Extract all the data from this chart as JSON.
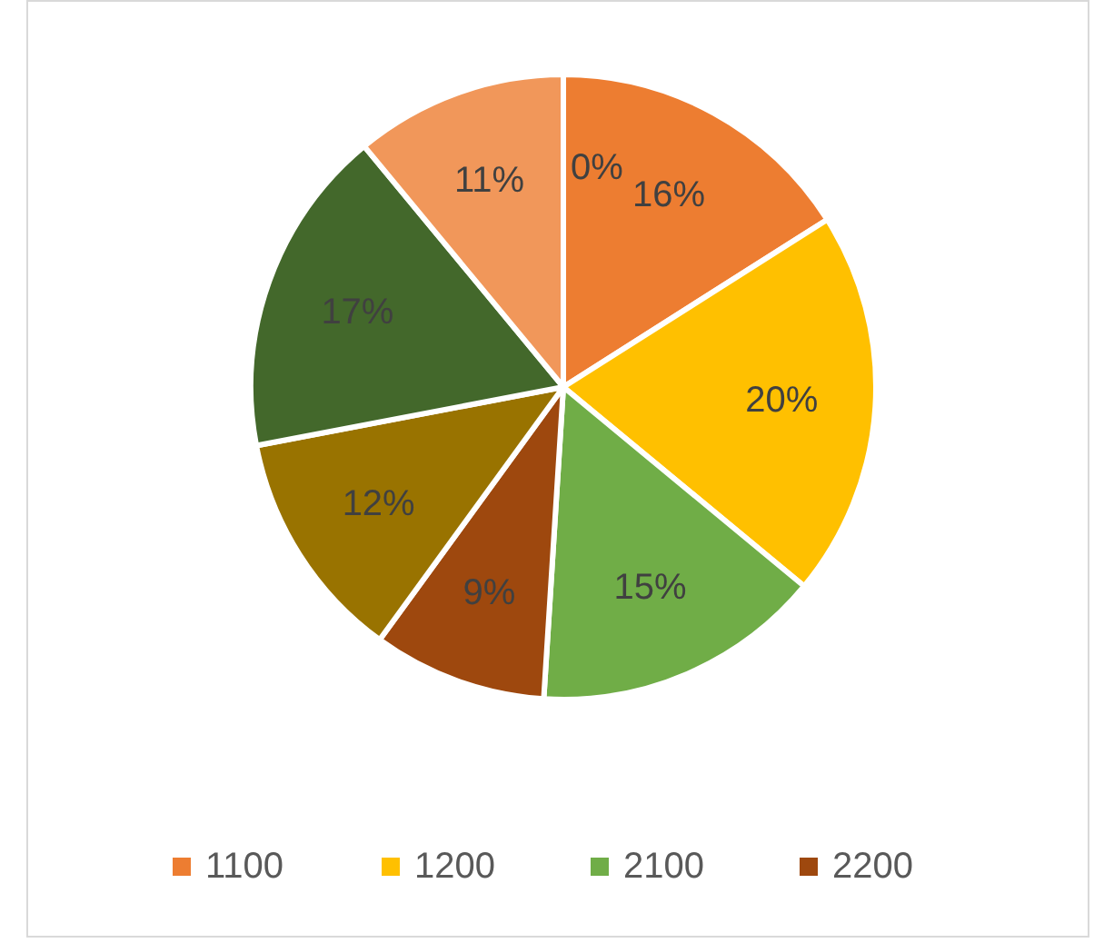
{
  "chart_data": {
    "type": "pie",
    "categories": [
      "1100",
      "1200",
      "2100",
      "2200",
      null,
      null,
      null,
      null
    ],
    "values": [
      16,
      20,
      15,
      9,
      12,
      17,
      11,
      0
    ],
    "colors": [
      "#ed7d31",
      "#ffc000",
      "#70ad47",
      "#9e480e",
      "#997300",
      "#43682b",
      "#f1975a",
      "#a5a5a5"
    ],
    "value_labels": [
      "16%",
      "20%",
      "15%",
      "9%",
      "12%",
      "17%",
      "11%",
      "0%"
    ],
    "legend": "bottom"
  }
}
